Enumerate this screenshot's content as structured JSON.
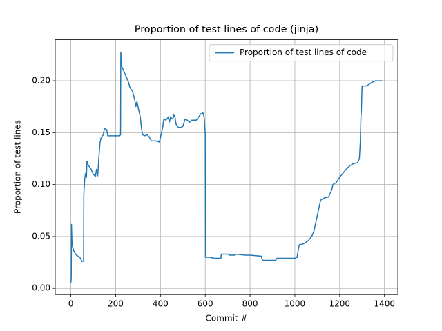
{
  "chart_data": {
    "type": "line",
    "title": "Proportion of test lines of code (jinja)",
    "x_label": "Commit #",
    "y_label": "Proportion of test lines",
    "x": [
      0,
      2,
      3,
      5,
      8,
      15,
      25,
      40,
      50,
      57,
      58,
      62,
      65,
      70,
      72,
      75,
      80,
      90,
      100,
      110,
      115,
      120,
      125,
      130,
      135,
      145,
      150,
      160,
      165,
      180,
      200,
      218,
      222,
      223,
      225,
      235,
      245,
      255,
      265,
      275,
      285,
      290,
      295,
      300,
      310,
      315,
      320,
      330,
      340,
      350,
      360,
      380,
      395,
      400,
      410,
      415,
      425,
      435,
      440,
      445,
      455,
      460,
      465,
      470,
      480,
      490,
      500,
      510,
      520,
      530,
      540,
      560,
      570,
      580,
      590,
      595,
      598,
      600,
      601,
      620,
      640,
      670,
      672,
      700,
      710,
      730,
      735,
      780,
      800,
      850,
      855,
      870,
      900,
      915,
      920,
      950,
      1000,
      1010,
      1015,
      1020,
      1040,
      1060,
      1075,
      1085,
      1095,
      1105,
      1115,
      1130,
      1150,
      1165,
      1170,
      1185,
      1200,
      1215,
      1230,
      1245,
      1260,
      1280,
      1288,
      1292,
      1295,
      1297,
      1300,
      1320,
      1340,
      1360,
      1390
    ],
    "series": [
      {
        "name": "Proportion of test lines of code",
        "color": "#1f77b4",
        "values": [
          0.005,
          0.01,
          0.062,
          0.045,
          0.04,
          0.035,
          0.032,
          0.03,
          0.026,
          0.026,
          0.09,
          0.105,
          0.11,
          0.108,
          0.123,
          0.12,
          0.118,
          0.115,
          0.11,
          0.108,
          0.115,
          0.108,
          0.125,
          0.14,
          0.145,
          0.148,
          0.154,
          0.153,
          0.147,
          0.147,
          0.147,
          0.147,
          0.148,
          0.228,
          0.215,
          0.21,
          0.205,
          0.2,
          0.193,
          0.19,
          0.182,
          0.175,
          0.18,
          0.175,
          0.165,
          0.155,
          0.148,
          0.147,
          0.148,
          0.146,
          0.142,
          0.142,
          0.141,
          0.145,
          0.155,
          0.163,
          0.162,
          0.165,
          0.16,
          0.165,
          0.163,
          0.167,
          0.165,
          0.158,
          0.155,
          0.155,
          0.156,
          0.163,
          0.162,
          0.16,
          0.162,
          0.162,
          0.165,
          0.168,
          0.169,
          0.165,
          0.155,
          0.15,
          0.03,
          0.03,
          0.029,
          0.029,
          0.033,
          0.033,
          0.032,
          0.032,
          0.033,
          0.032,
          0.032,
          0.031,
          0.027,
          0.027,
          0.027,
          0.027,
          0.029,
          0.029,
          0.029,
          0.03,
          0.037,
          0.042,
          0.043,
          0.046,
          0.05,
          0.055,
          0.065,
          0.075,
          0.085,
          0.087,
          0.088,
          0.095,
          0.1,
          0.102,
          0.107,
          0.111,
          0.115,
          0.118,
          0.12,
          0.121,
          0.125,
          0.14,
          0.165,
          0.17,
          0.195,
          0.195,
          0.198,
          0.2,
          0.2
        ]
      }
    ],
    "xlim": [
      -69.5,
      1459.5
    ],
    "ylim": [
      -0.006,
      0.2395
    ],
    "xticks": [
      0,
      200,
      400,
      600,
      800,
      1000,
      1200,
      1400
    ],
    "yticks": [
      {
        "value": 0,
        "label": "0.00"
      },
      {
        "value": 0.05,
        "label": "0.05"
      },
      {
        "value": 0.1,
        "label": "0.10"
      },
      {
        "value": 0.15,
        "label": "0.15"
      },
      {
        "value": 0.2,
        "label": "0.20"
      }
    ],
    "grid": true,
    "legend": "upper right"
  }
}
